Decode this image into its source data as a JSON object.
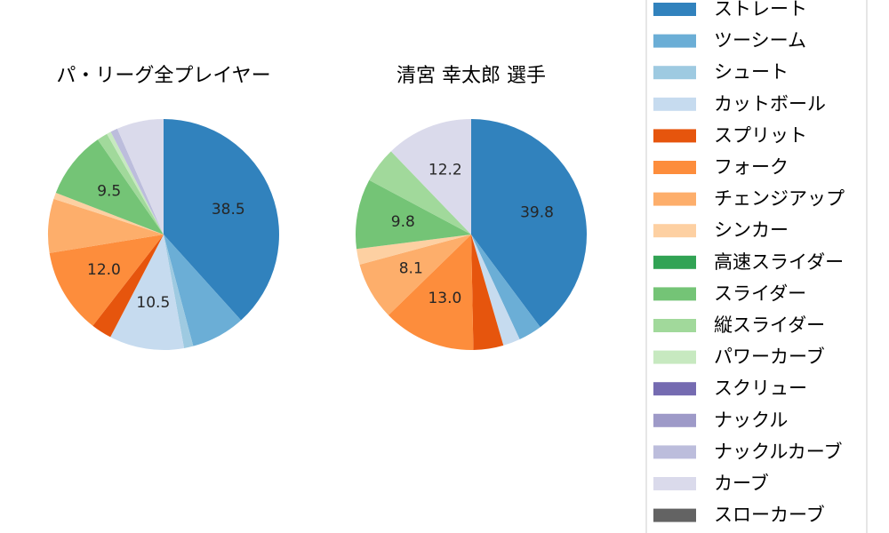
{
  "chart_data": [
    {
      "type": "pie",
      "title": "パ・リーグ全プレイヤー",
      "slices": [
        {
          "name": "ストレート",
          "value": 38.5,
          "label": "38.5"
        },
        {
          "name": "ツーシーム",
          "value": 7.6,
          "label": ""
        },
        {
          "name": "シュート",
          "value": 1.3,
          "label": ""
        },
        {
          "name": "カットボール",
          "value": 10.5,
          "label": "10.5"
        },
        {
          "name": "スプリット",
          "value": 2.9,
          "label": ""
        },
        {
          "name": "フォーク",
          "value": 12.0,
          "label": "12.0"
        },
        {
          "name": "チェンジアップ",
          "value": 7.6,
          "label": ""
        },
        {
          "name": "シンカー",
          "value": 0.9,
          "label": ""
        },
        {
          "name": "高速スライダー",
          "value": 0.0,
          "label": ""
        },
        {
          "name": "スライダー",
          "value": 9.5,
          "label": "9.5"
        },
        {
          "name": "縦スライダー",
          "value": 1.5,
          "label": ""
        },
        {
          "name": "パワーカーブ",
          "value": 0.6,
          "label": ""
        },
        {
          "name": "スクリュー",
          "value": 0.0,
          "label": ""
        },
        {
          "name": "ナックル",
          "value": 0.0,
          "label": ""
        },
        {
          "name": "ナックルカーブ",
          "value": 1.0,
          "label": ""
        },
        {
          "name": "カーブ",
          "value": 6.6,
          "label": ""
        },
        {
          "name": "スローカーブ",
          "value": 0.0,
          "label": ""
        }
      ]
    },
    {
      "type": "pie",
      "title": "清宮 幸太郎  選手",
      "slices": [
        {
          "name": "ストレート",
          "value": 39.8,
          "label": "39.8"
        },
        {
          "name": "ツーシーム",
          "value": 3.3,
          "label": ""
        },
        {
          "name": "シュート",
          "value": 0.0,
          "label": ""
        },
        {
          "name": "カットボール",
          "value": 2.4,
          "label": ""
        },
        {
          "name": "スプリット",
          "value": 4.2,
          "label": ""
        },
        {
          "name": "フォーク",
          "value": 13.0,
          "label": "13.0"
        },
        {
          "name": "チェンジアップ",
          "value": 8.1,
          "label": "8.1"
        },
        {
          "name": "シンカー",
          "value": 2.2,
          "label": ""
        },
        {
          "name": "高速スライダー",
          "value": 0.0,
          "label": ""
        },
        {
          "name": "スライダー",
          "value": 9.8,
          "label": "9.8"
        },
        {
          "name": "縦スライダー",
          "value": 5.0,
          "label": ""
        },
        {
          "name": "パワーカーブ",
          "value": 0.0,
          "label": ""
        },
        {
          "name": "スクリュー",
          "value": 0.0,
          "label": ""
        },
        {
          "name": "ナックル",
          "value": 0.0,
          "label": ""
        },
        {
          "name": "ナックルカーブ",
          "value": 0.0,
          "label": ""
        },
        {
          "name": "カーブ",
          "value": 12.2,
          "label": "12.2"
        },
        {
          "name": "スローカーブ",
          "value": 0.0,
          "label": ""
        }
      ]
    }
  ],
  "legend": {
    "placement": "right",
    "entries": [
      {
        "name": "ストレート",
        "color": "#3182bd"
      },
      {
        "name": "ツーシーム",
        "color": "#6baed6"
      },
      {
        "name": "シュート",
        "color": "#9ecae1"
      },
      {
        "name": "カットボール",
        "color": "#c6dbef"
      },
      {
        "name": "スプリット",
        "color": "#e6550d"
      },
      {
        "name": "フォーク",
        "color": "#fd8d3c"
      },
      {
        "name": "チェンジアップ",
        "color": "#fdae6b"
      },
      {
        "name": "シンカー",
        "color": "#fdd0a2"
      },
      {
        "name": "高速スライダー",
        "color": "#31a354"
      },
      {
        "name": "スライダー",
        "color": "#74c476"
      },
      {
        "name": "縦スライダー",
        "color": "#a1d99b"
      },
      {
        "name": "パワーカーブ",
        "color": "#c7e9c0"
      },
      {
        "name": "スクリュー",
        "color": "#756bb1"
      },
      {
        "name": "ナックル",
        "color": "#9e9ac8"
      },
      {
        "name": "ナックルカーブ",
        "color": "#bcbddc"
      },
      {
        "name": "カーブ",
        "color": "#dadaeb"
      },
      {
        "name": "スローカーブ",
        "color": "#636363"
      }
    ]
  }
}
